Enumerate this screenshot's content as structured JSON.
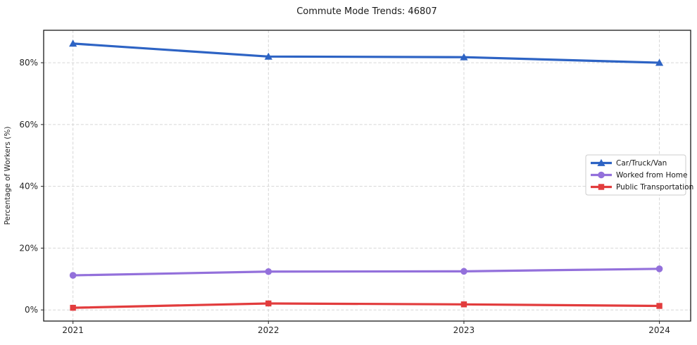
{
  "chart_data": {
    "type": "line",
    "title": "Commute Mode Trends: 46807",
    "xlabel": "",
    "ylabel": "Percentage of Workers (%)",
    "x": [
      2021,
      2022,
      2023,
      2024
    ],
    "x_tick_labels": [
      "2021",
      "2022",
      "2023",
      "2024"
    ],
    "yticks": [
      0,
      20,
      40,
      60,
      80
    ],
    "ytick_labels": [
      "0%",
      "20%",
      "40%",
      "60%",
      "80%"
    ],
    "xlim": [
      2020.85,
      2024.16
    ],
    "ylim": [
      -3.6,
      90.5
    ],
    "grid": true,
    "grid_style": "dashed",
    "legend_position": "center-right",
    "series": [
      {
        "name": "Car/Truck/Van",
        "marker": "triangle",
        "color": "#2d63c4",
        "values": [
          86.2,
          82.0,
          81.8,
          80.0
        ]
      },
      {
        "name": "Worked from Home",
        "marker": "circle",
        "color": "#9370db",
        "values": [
          11.2,
          12.4,
          12.5,
          13.3
        ]
      },
      {
        "name": "Public Transportation",
        "marker": "square",
        "color": "#e23c3d",
        "values": [
          0.7,
          2.1,
          1.8,
          1.3
        ]
      }
    ],
    "colors": {
      "grid": "#d6d6d6",
      "spine": "#1a1a1a",
      "text": "#262626",
      "background": "#ffffff"
    }
  }
}
